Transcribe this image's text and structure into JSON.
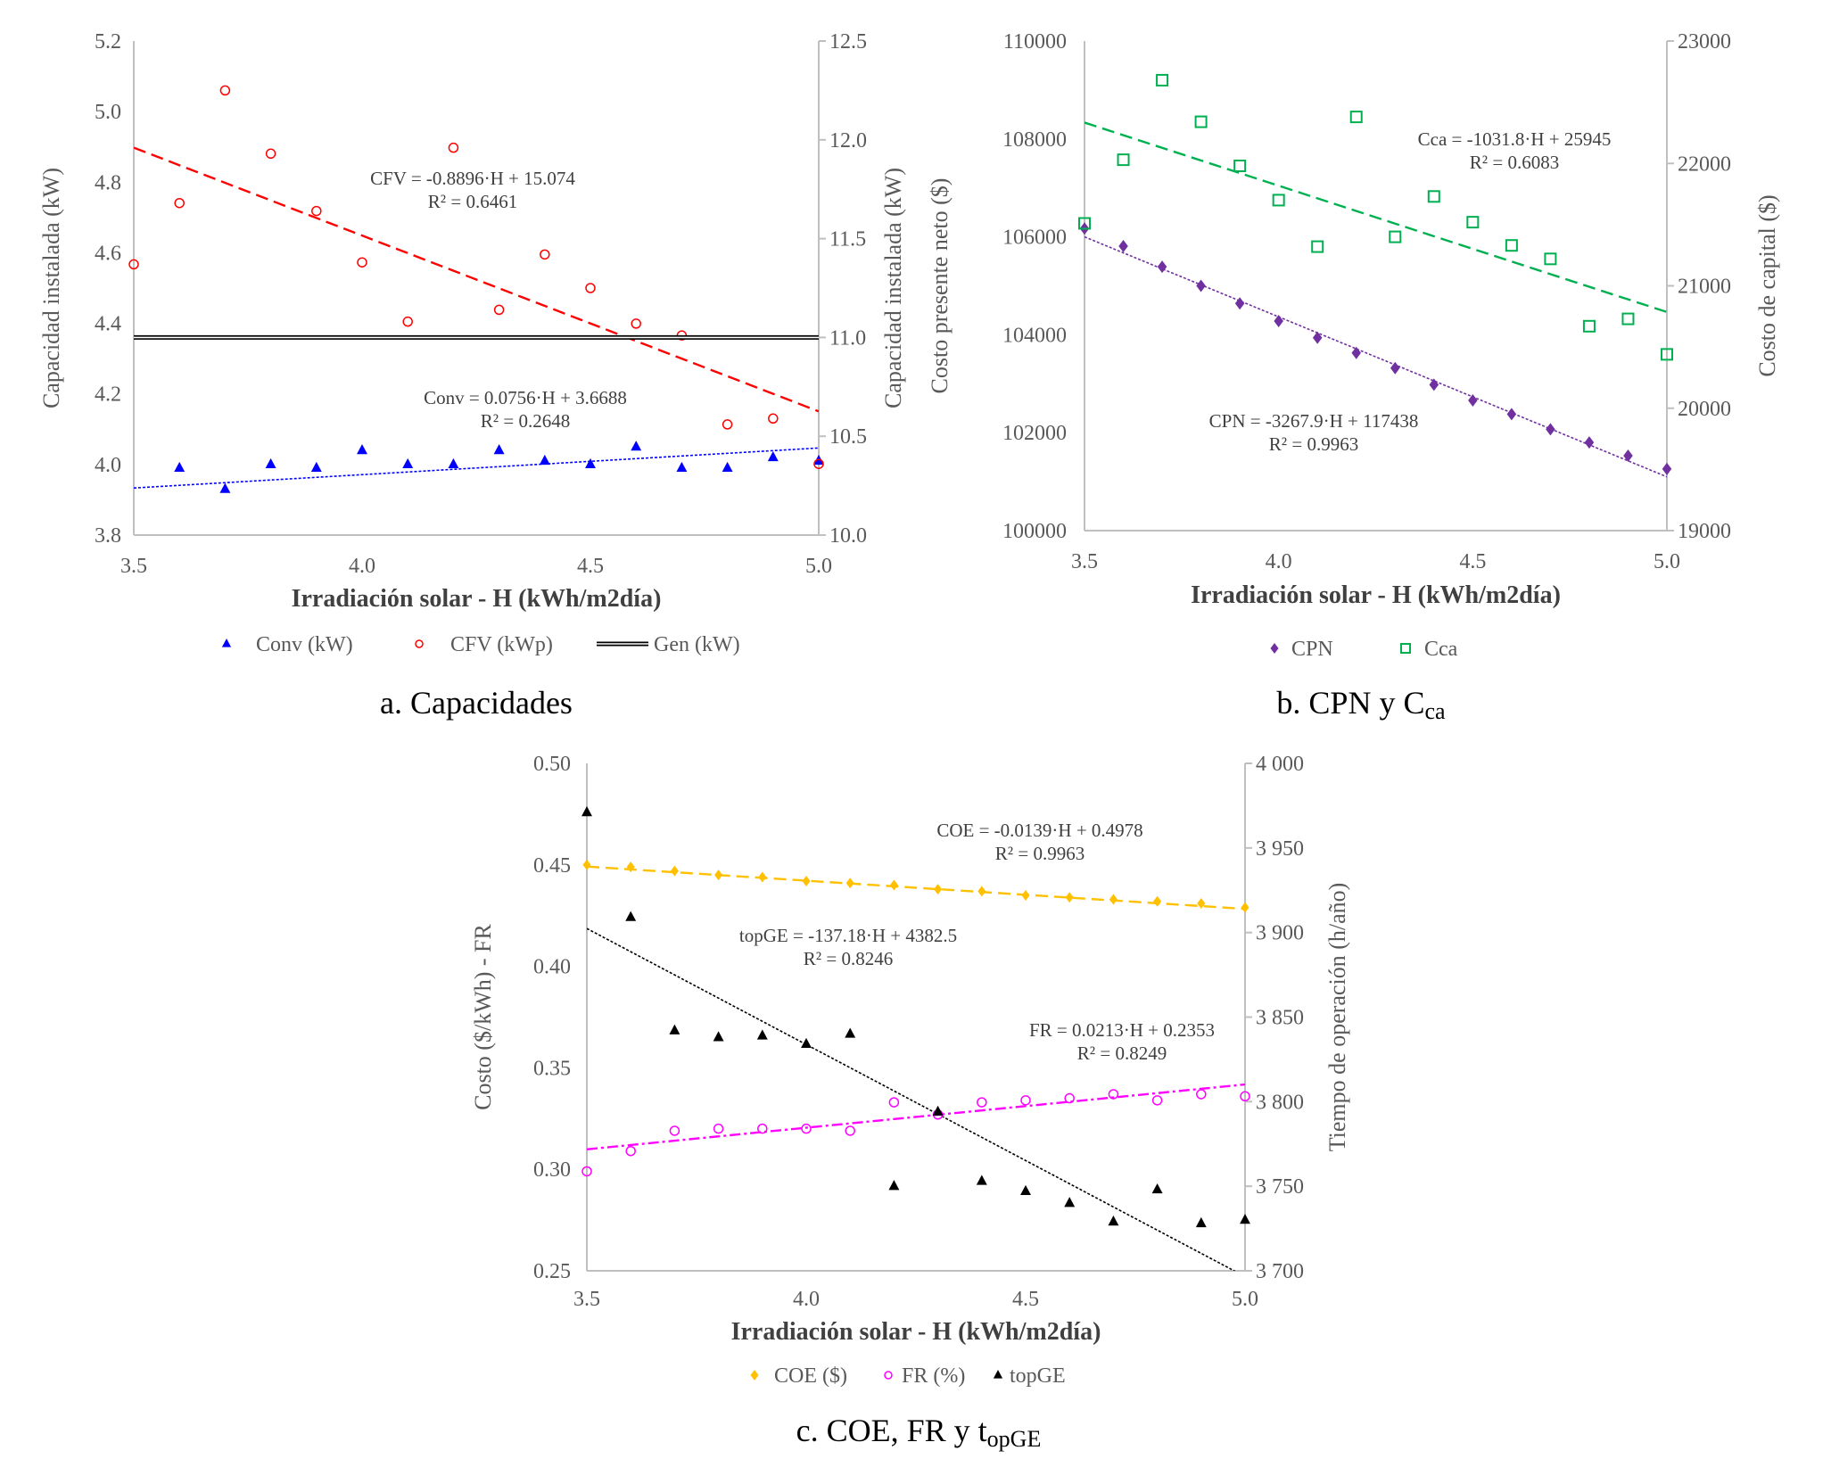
{
  "chart_data": [
    {
      "type": "scatter",
      "caption": {
        "text": "a. Capacidades",
        "sub": ""
      },
      "xlabel": "Irradiación solar - H (kWh/m2día)",
      "ylabel_left": "Capacidad instalada (kW)",
      "ylabel_right": "Capacidad instalada (kW)",
      "xlim": [
        3.5,
        5.0
      ],
      "ylim_left": [
        3.8,
        5.2
      ],
      "ylim_right": [
        10.0,
        12.5
      ],
      "x_ticks": [
        "3.5",
        "4.0",
        "4.5",
        "5.0"
      ],
      "y_left_ticks": [
        "3.8",
        "4.0",
        "4.2",
        "4.4",
        "4.6",
        "4.8",
        "5.0",
        "5.2"
      ],
      "y_right_ticks": [
        "10.0",
        "10.5",
        "11.0",
        "11.5",
        "12.0",
        "12.5"
      ],
      "grid": false,
      "legend_placement": "bottom",
      "x": [
        3.5,
        3.6,
        3.7,
        3.8,
        3.9,
        4.0,
        4.1,
        4.2,
        4.3,
        4.4,
        4.5,
        4.6,
        4.7,
        4.8,
        4.9,
        5.0
      ],
      "series": [
        {
          "name": "Conv (kW)",
          "axis": "left",
          "color": "#0000ff",
          "marker": "triangle",
          "values": [
            null,
            3.99,
            3.93,
            4.0,
            3.99,
            4.04,
            4.0,
            4.0,
            4.04,
            4.01,
            4.0,
            4.05,
            3.99,
            3.99,
            4.02,
            4.01
          ]
        },
        {
          "name": "CFV (kWp)",
          "axis": "right",
          "color": "#ff0000",
          "marker": "open-circle",
          "values": [
            11.37,
            11.68,
            12.25,
            11.93,
            11.64,
            11.38,
            11.08,
            11.96,
            11.14,
            11.42,
            11.25,
            11.07,
            11.01,
            10.56,
            10.59,
            10.36
          ]
        },
        {
          "name": "Gen (kW)",
          "axis": "right",
          "color": "#000000",
          "marker": "double-line",
          "values": [
            11.0,
            11.0,
            11.0,
            11.0,
            11.0,
            11.0,
            11.0,
            11.0,
            11.0,
            11.0,
            11.0,
            11.0,
            11.0,
            11.0,
            11.0,
            11.0
          ]
        }
      ],
      "trendlines": [
        {
          "series": 1,
          "axis": "right",
          "equation": "CFV = -0.8896·H + 15.074",
          "r2": "R² = 0.6461",
          "slope": -0.8896,
          "intercept": 15.074,
          "color": "#ff0000",
          "style": "dashed"
        },
        {
          "series": 0,
          "axis": "left",
          "equation": "Conv = 0.0756·H + 3.6688",
          "r2": "R² = 0.2648",
          "slope": 0.0756,
          "intercept": 3.6688,
          "color": "#0000ff",
          "style": "dotted"
        }
      ]
    },
    {
      "type": "scatter",
      "caption": {
        "text": "b. CPN y C",
        "sub": "ca"
      },
      "xlabel": "Irradiación solar - H (kWh/m2día)",
      "ylabel_left": "Costo presente neto ($)",
      "ylabel_right": "Costo de capital ($)",
      "xlim": [
        3.5,
        5.0
      ],
      "ylim_left": [
        100000,
        110000
      ],
      "ylim_right": [
        19000,
        23000
      ],
      "x_ticks": [
        "3.5",
        "4.0",
        "4.5",
        "5.0"
      ],
      "y_left_ticks": [
        "100000",
        "102000",
        "104000",
        "106000",
        "108000",
        "110000"
      ],
      "y_right_ticks": [
        "19000",
        "20000",
        "21000",
        "22000",
        "23000"
      ],
      "grid": false,
      "legend_placement": "bottom",
      "x": [
        3.5,
        3.6,
        3.7,
        3.8,
        3.9,
        4.0,
        4.1,
        4.2,
        4.3,
        4.4,
        4.5,
        4.6,
        4.7,
        4.8,
        4.9,
        5.0
      ],
      "series": [
        {
          "name": "CPN",
          "axis": "left",
          "color": "#7030a0",
          "marker": "diamond",
          "values": [
            106170,
            105810,
            105390,
            105000,
            104640,
            104280,
            103940,
            103630,
            103320,
            102980,
            102660,
            102380,
            102070,
            101800,
            101530,
            101260
          ]
        },
        {
          "name": "Cca",
          "axis": "right",
          "color": "#00b050",
          "marker": "open-square",
          "values": [
            21510,
            22030,
            22680,
            22340,
            21980,
            21700,
            21320,
            22380,
            21400,
            21730,
            21520,
            21330,
            21220,
            20670,
            20730,
            20440
          ]
        }
      ],
      "trendlines": [
        {
          "series": 1,
          "axis": "right",
          "equation": "Cca = -1031.8·H + 25945",
          "r2": "R² = 0.6083",
          "slope": -1031.8,
          "intercept": 25945,
          "color": "#00b050",
          "style": "dashed"
        },
        {
          "series": 0,
          "axis": "left",
          "equation": "CPN = -3267.9·H + 117438",
          "r2": "R² = 0.9963",
          "slope": -3267.9,
          "intercept": 117438,
          "color": "#7030a0",
          "style": "dotted"
        }
      ]
    },
    {
      "type": "scatter",
      "caption": {
        "text": "c. COE, FR y t",
        "sub": "opGE"
      },
      "xlabel": "Irradiación solar - H (kWh/m2día)",
      "ylabel_left": "Costo ($/kWh) - FR",
      "ylabel_right": "Tiempo de operación (h/año)",
      "xlim": [
        3.5,
        5.0
      ],
      "ylim_left": [
        0.25,
        0.5
      ],
      "ylim_right": [
        3700,
        4000
      ],
      "x_ticks": [
        "3.5",
        "4.0",
        "4.5",
        "5.0"
      ],
      "y_left_ticks": [
        "0.25",
        "0.30",
        "0.35",
        "0.40",
        "0.45",
        "0.50"
      ],
      "y_right_ticks": [
        "3 700",
        "3 750",
        "3 800",
        "3 850",
        "3 900",
        "3 950",
        "4 000"
      ],
      "grid": false,
      "legend_placement": "bottom",
      "x": [
        3.5,
        3.6,
        3.7,
        3.8,
        3.9,
        4.0,
        4.1,
        4.2,
        4.3,
        4.4,
        4.5,
        4.6,
        4.7,
        4.8,
        4.9,
        5.0
      ],
      "series": [
        {
          "name": "COE ($)",
          "axis": "left",
          "color": "#ffc000",
          "marker": "diamond",
          "values": [
            0.45,
            0.449,
            0.447,
            0.445,
            0.444,
            0.442,
            0.441,
            0.44,
            0.438,
            0.437,
            0.435,
            0.434,
            0.433,
            0.432,
            0.431,
            0.429
          ]
        },
        {
          "name": "FR (%)",
          "axis": "left",
          "color": "#ff00ff",
          "marker": "open-circle",
          "values": [
            0.299,
            0.309,
            0.319,
            0.32,
            0.32,
            0.32,
            0.319,
            0.333,
            0.327,
            0.333,
            0.334,
            0.335,
            0.337,
            0.334,
            0.337,
            0.336
          ]
        },
        {
          "name": "topGE",
          "axis": "right",
          "color": "#000000",
          "marker": "triangle",
          "values": [
            3971,
            3909,
            3842,
            3838,
            3839,
            3834,
            3840,
            3750,
            3794,
            3753,
            3747,
            3740,
            3729,
            3748,
            3728,
            3730
          ]
        }
      ],
      "trendlines": [
        {
          "series": 0,
          "axis": "left",
          "equation": "COE = -0.0139·H + 0.4978",
          "r2": "R² = 0.9963",
          "slope": -0.0139,
          "intercept": 0.4978,
          "color": "#ffc000",
          "style": "dashed"
        },
        {
          "series": 2,
          "axis": "right",
          "equation": "topGE = -137.18·H + 4382.5",
          "r2": "R² = 0.8246",
          "slope": -137.18,
          "intercept": 4382.5,
          "color": "#000000",
          "style": "dotted"
        },
        {
          "series": 1,
          "axis": "left",
          "equation": "FR = 0.0213·H + 0.2353",
          "r2": "R² = 0.8249",
          "slope": 0.0213,
          "intercept": 0.2353,
          "color": "#ff00ff",
          "style": "dashdot"
        }
      ]
    }
  ]
}
